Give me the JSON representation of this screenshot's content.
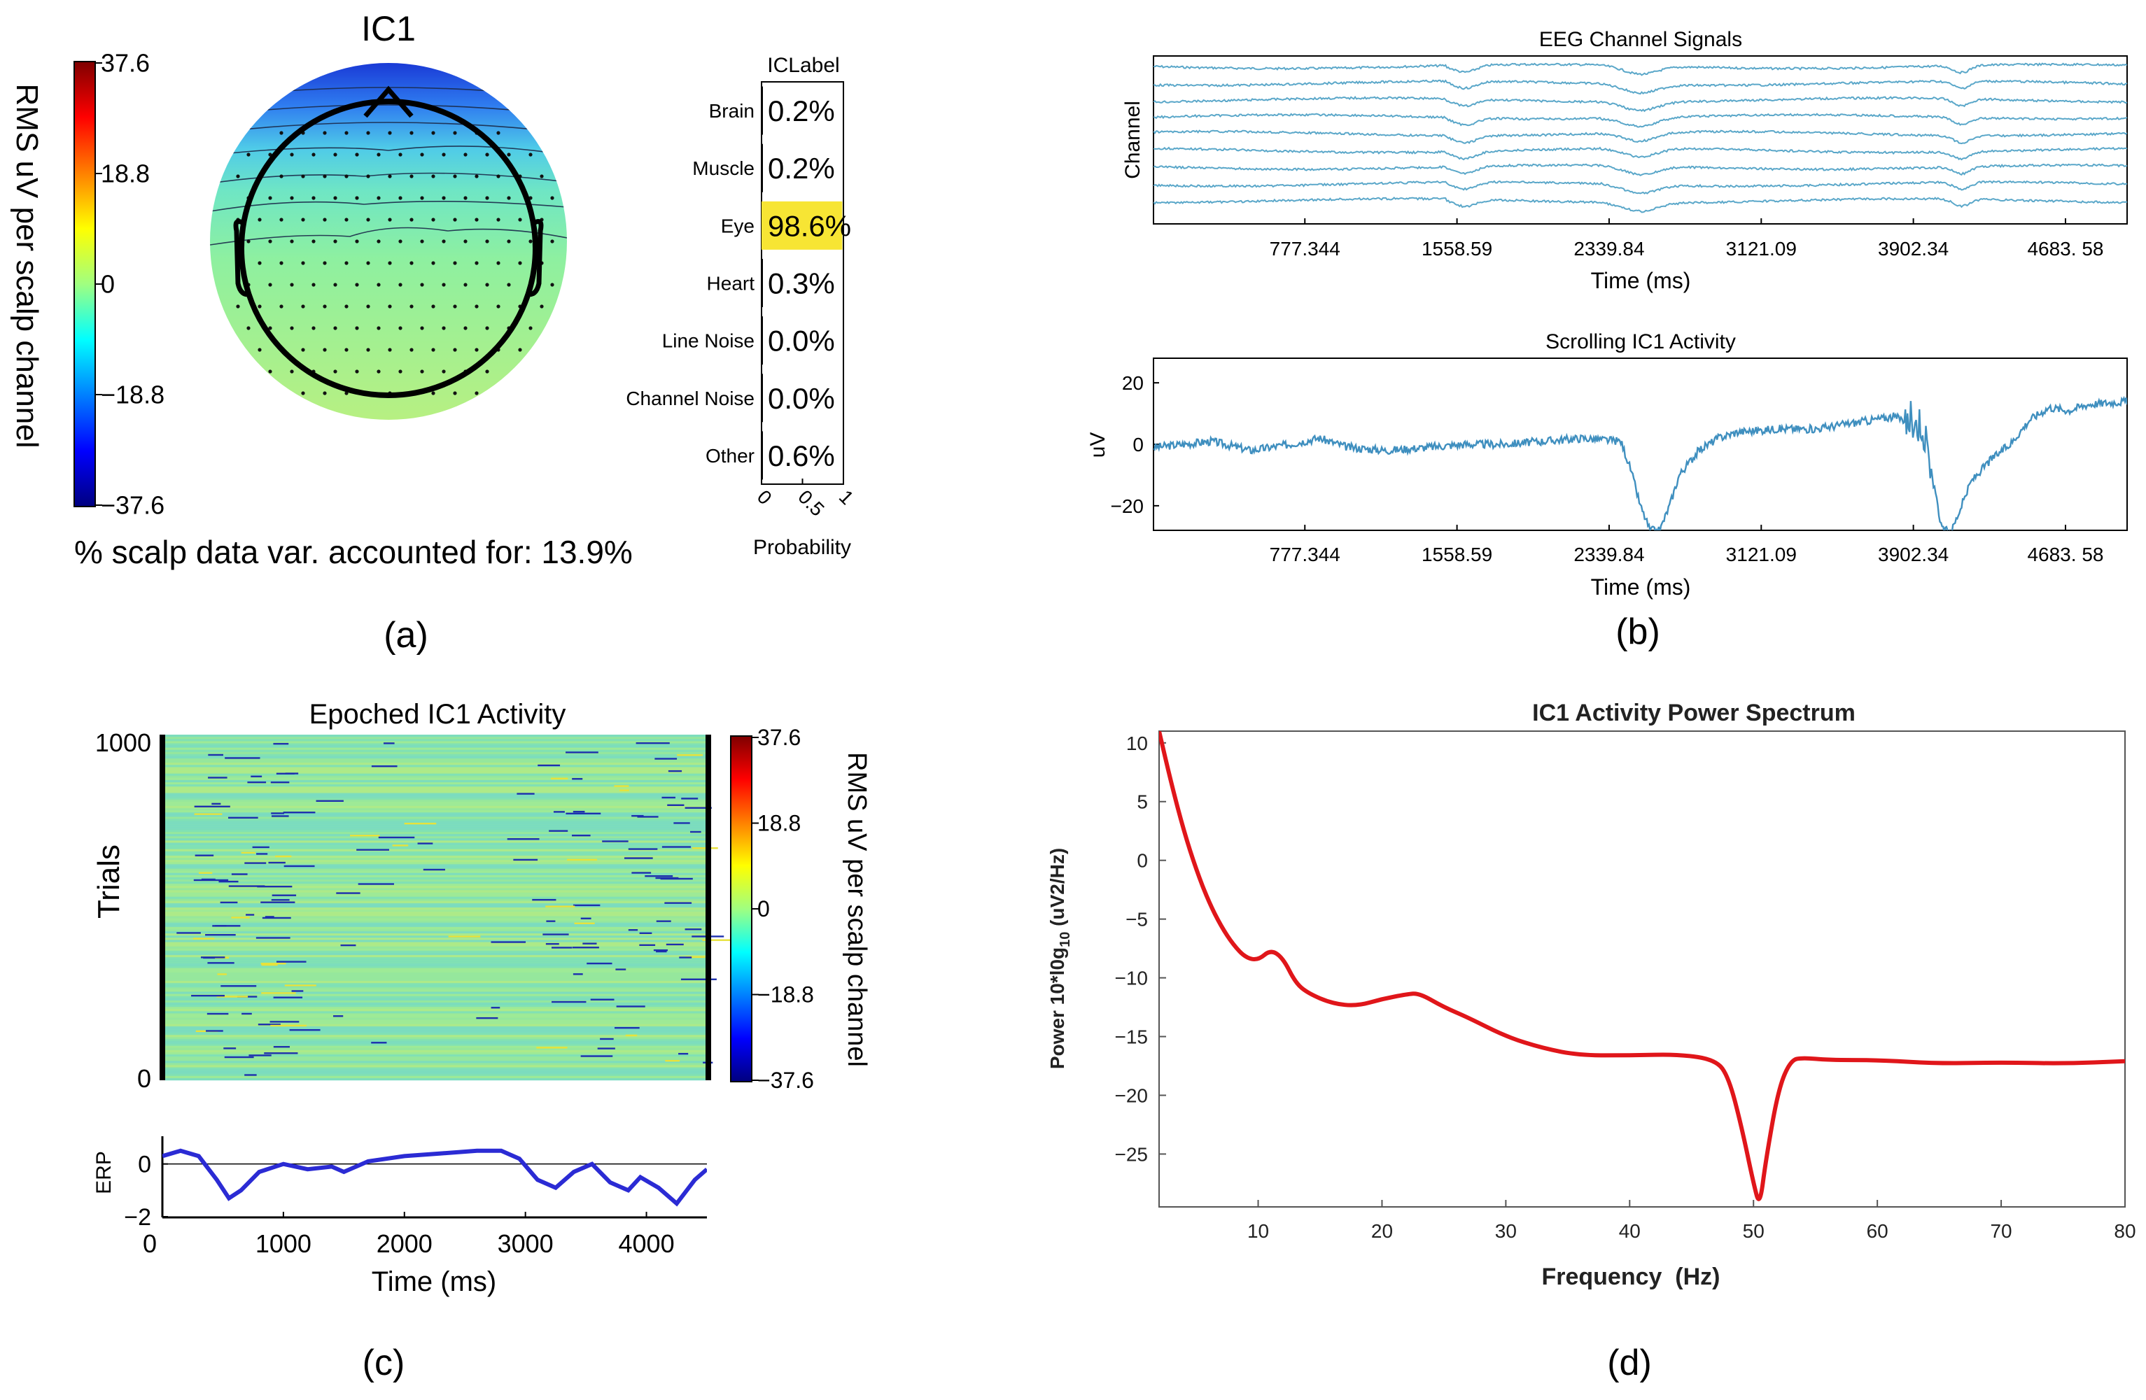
{
  "chart_data": [
    {
      "panel": "a-topo",
      "type": "heatmap",
      "title": "IC1",
      "colorbar": {
        "ticks": [
          "37.6",
          "18.8",
          "0",
          "−18.8",
          "−37.6"
        ],
        "label": "RMS uV per scalp channel",
        "range": [
          -37.6,
          37.6
        ]
      },
      "caption": "% scalp data var. accounted for: 13.9%",
      "panel_label": "(a)"
    },
    {
      "panel": "a-iclabel",
      "type": "bar",
      "title": "ICLabel",
      "categories": [
        "Brain",
        "Muscle",
        "Eye",
        "Heart",
        "Line Noise",
        "Channel Noise",
        "Other"
      ],
      "labels": [
        "0.2%",
        "0.2%",
        "98.6%",
        "0.3%",
        "0.0%",
        "0.0%",
        "0.6%"
      ],
      "values": [
        0.002,
        0.002,
        0.986,
        0.003,
        0.0,
        0.0,
        0.006
      ],
      "highlight_color": "#f7e534",
      "xticks": [
        "0",
        "0.5",
        "1"
      ],
      "xlabel": "Probability",
      "xlim": [
        0,
        1
      ]
    },
    {
      "panel": "b-eeg",
      "type": "line",
      "title": "EEG Channel Signals",
      "ylabel": "Channel",
      "xlabel": "Time (ms)",
      "xticks": [
        "777.344",
        "1558.59",
        "2339.84",
        "3121.09",
        "3902.34",
        "4683. 58"
      ],
      "xtick_values": [
        777.344,
        1558.59,
        2339.84,
        3121.09,
        3902.34,
        4683.58
      ],
      "xlim": [
        0,
        5000
      ],
      "channels": 9,
      "line_color": "#5aa7c9"
    },
    {
      "panel": "b-ic1",
      "type": "line",
      "title": "Scrolling IC1 Activity",
      "ylabel": "uV",
      "xlabel": "Time (ms)",
      "yticks": [
        "20",
        "0",
        "−20"
      ],
      "ytick_values": [
        20,
        0,
        -20
      ],
      "ylim": [
        -28,
        28
      ],
      "xticks": [
        "777.344",
        "1558.59",
        "2339.84",
        "3121.09",
        "3902.34",
        "4683. 58"
      ],
      "xtick_values": [
        777.344,
        1558.59,
        2339.84,
        3121.09,
        3902.34,
        4683.58
      ],
      "xlim": [
        0,
        5000
      ],
      "x": [
        0,
        300,
        500,
        700,
        850,
        1000,
        1200,
        1400,
        1600,
        1800,
        2000,
        2200,
        2400,
        2450,
        2500,
        2550,
        2600,
        2650,
        2700,
        2800,
        2900,
        3000,
        3200,
        3400,
        3600,
        3800,
        3950,
        4050,
        4100,
        4150,
        4200,
        4300,
        4400,
        4500,
        4600,
        4700,
        4800,
        5000
      ],
      "y": [
        -1,
        1,
        -2,
        0,
        2,
        -1,
        -2,
        -1,
        0,
        0,
        1,
        2,
        1,
        -8,
        -20,
        -28,
        -28,
        -20,
        -10,
        -2,
        2,
        4,
        5,
        5,
        7,
        9,
        6,
        -28,
        -28,
        -20,
        -12,
        -5,
        0,
        8,
        12,
        11,
        13,
        14
      ],
      "line_color": "#3f8fbf",
      "panel_label": "(b)"
    },
    {
      "panel": "c-erpimage",
      "type": "heatmap",
      "title": "Epoched IC1 Activity",
      "ylabel": "Trials",
      "yticks": [
        "1000",
        "0"
      ],
      "colorbar": {
        "ticks": [
          "37.6",
          "18.8",
          "0",
          "−18.8",
          "−37.6"
        ],
        "label": "RMS uV per scalp channel",
        "range": [
          -37.6,
          37.6
        ]
      }
    },
    {
      "panel": "c-erp",
      "type": "line",
      "ylabel": "ERP",
      "yticks": [
        "0",
        "−2"
      ],
      "ylim": [
        -2,
        1
      ],
      "xticks": [
        "0",
        "1000",
        "2000",
        "3000",
        "4000"
      ],
      "xtick_values": [
        0,
        1000,
        2000,
        3000,
        4000
      ],
      "xlim": [
        0,
        4500
      ],
      "xlabel": "Time (ms)",
      "x": [
        0,
        150,
        300,
        450,
        550,
        650,
        800,
        1000,
        1200,
        1400,
        1500,
        1700,
        2000,
        2300,
        2600,
        2800,
        2950,
        3100,
        3250,
        3400,
        3550,
        3700,
        3850,
        3950,
        4100,
        4250,
        4400,
        4500
      ],
      "y": [
        0.3,
        0.5,
        0.3,
        -0.6,
        -1.3,
        -1.0,
        -0.3,
        0.0,
        -0.2,
        -0.1,
        -0.3,
        0.1,
        0.3,
        0.4,
        0.5,
        0.5,
        0.2,
        -0.6,
        -0.9,
        -0.3,
        0.0,
        -0.7,
        -1.0,
        -0.5,
        -0.9,
        -1.5,
        -0.6,
        -0.2
      ],
      "line_color": "#2b2bd4",
      "panel_label": "(c)"
    },
    {
      "panel": "d-spectrum",
      "type": "line",
      "title": "IC1 Activity Power Spectrum",
      "xlabel": "Frequency  (Hz)",
      "ylabel": "Power 10*log10 (uV2/Hz)",
      "ylabel_parts": [
        "Power 10*l0g",
        "10",
        " (uV2/Hz)"
      ],
      "yticks": [
        "10",
        "5",
        "0",
        "−5",
        "−10",
        "−15",
        "−20",
        "−25"
      ],
      "ytick_values": [
        10,
        5,
        0,
        -5,
        -10,
        -15,
        -20,
        -25
      ],
      "ylim": [
        -29.5,
        11
      ],
      "xticks": [
        "10",
        "20",
        "30",
        "40",
        "50",
        "60",
        "70",
        "80"
      ],
      "xtick_values": [
        10,
        20,
        30,
        40,
        50,
        60,
        70,
        80
      ],
      "xlim": [
        2,
        80
      ],
      "x": [
        2,
        3,
        4,
        5,
        6,
        7,
        8,
        9,
        10,
        11,
        12,
        13,
        14,
        16,
        18,
        20,
        22,
        23,
        25,
        27,
        30,
        33,
        36,
        40,
        44,
        47,
        48,
        49,
        50,
        50.5,
        51,
        52,
        53,
        54,
        56,
        60,
        65,
        70,
        75,
        80
      ],
      "y": [
        11,
        6.5,
        2.5,
        -0.8,
        -3.5,
        -5.6,
        -7.2,
        -8.3,
        -8.5,
        -7.6,
        -8.3,
        -10.4,
        -11.3,
        -12.2,
        -12.4,
        -11.8,
        -11.4,
        -11.3,
        -12.5,
        -13.4,
        -15.0,
        -16.0,
        -16.6,
        -16.6,
        -16.5,
        -17.0,
        -18.5,
        -22.5,
        -27.5,
        -29.5,
        -25.5,
        -19.5,
        -17.0,
        -16.8,
        -17.0,
        -17.0,
        -17.3,
        -17.2,
        -17.3,
        -17.1
      ],
      "line_color": "#e0161a",
      "panel_label": "(d)"
    }
  ]
}
